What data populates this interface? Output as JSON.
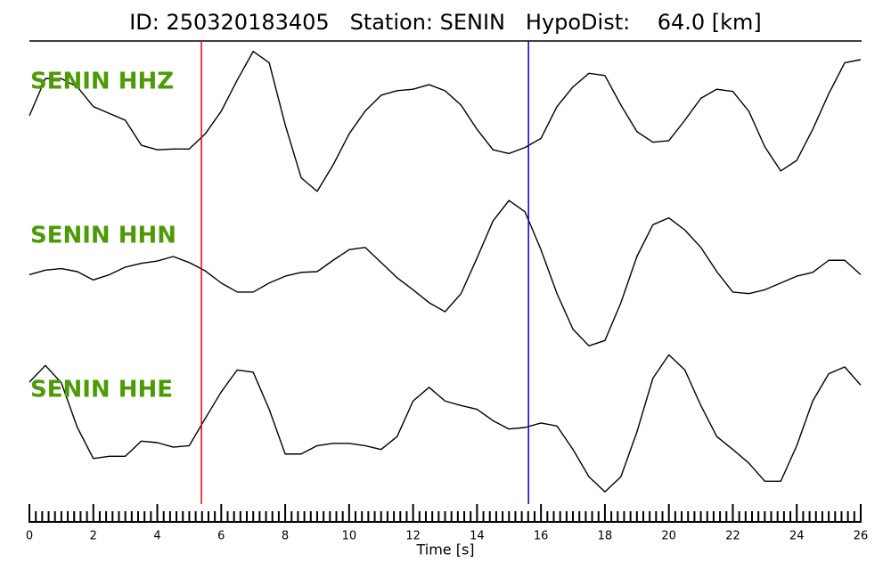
{
  "chart_data": {
    "type": "line",
    "title": "ID: 250320183405   Station: SENIN   HypoDist:    64.0 [km]",
    "xlabel": "Time [s]",
    "xlim": [
      0,
      26
    ],
    "xticks": [
      0,
      2,
      4,
      6,
      8,
      10,
      12,
      14,
      16,
      18,
      20,
      22,
      24,
      26
    ],
    "xminorticks": [
      0.2,
      0.4,
      0.6,
      0.8,
      1,
      1.2,
      1.4,
      1.6,
      1.8,
      2.2,
      2.4,
      2.6,
      2.8,
      3,
      3.2,
      3.4,
      3.6,
      3.8,
      4.2,
      4.4,
      4.6,
      4.8,
      5,
      5.2,
      5.4,
      5.6,
      5.8,
      6.2,
      6.4,
      6.6,
      6.8,
      7,
      7.2,
      7.4,
      7.6,
      7.8,
      8.2,
      8.4,
      8.6,
      8.8,
      9,
      9.2,
      9.4,
      9.6,
      9.8,
      10.2,
      10.4,
      10.6,
      10.8,
      11,
      11.2,
      11.4,
      11.6,
      11.8,
      12.2,
      12.4,
      12.6,
      12.8,
      13,
      13.2,
      13.4,
      13.6,
      13.8,
      14.2,
      14.4,
      14.6,
      14.8,
      15,
      15.2,
      15.4,
      15.6,
      15.8,
      16.2,
      16.4,
      16.6,
      16.8,
      17,
      17.2,
      17.4,
      17.6,
      17.8,
      18.2,
      18.4,
      18.6,
      18.8,
      19,
      19.2,
      19.4,
      19.6,
      19.8,
      20.2,
      20.4,
      20.6,
      20.8,
      21,
      21.2,
      21.4,
      21.6,
      21.8,
      22.2,
      22.4,
      22.6,
      22.8,
      23,
      23.2,
      23.4,
      23.6,
      23.8,
      24.2,
      24.4,
      24.6,
      24.8,
      25,
      25.2,
      25.4,
      25.6,
      25.8
    ],
    "ylim": [
      -100,
      100
    ],
    "label_color": "#4e9a06",
    "x": [
      0,
      0.5,
      1,
      1.5,
      2,
      2.5,
      3,
      3.5,
      4,
      4.5,
      5,
      5.5,
      6,
      6.5,
      7,
      7.5,
      8,
      8.5,
      9,
      9.5,
      10,
      10.5,
      11,
      11.5,
      12,
      12.5,
      13,
      13.5,
      14,
      14.5,
      15,
      15.5,
      16,
      16.5,
      17,
      17.5,
      18,
      18.5,
      19,
      19.5,
      20,
      20.5,
      21,
      21.5,
      22,
      22.5,
      23,
      23.5,
      24,
      24.5,
      25,
      25.5,
      26
    ],
    "series": [
      {
        "name": "SENIN HHZ",
        "color": "#000000",
        "values": [
          6,
          55,
          55,
          44,
          18,
          9,
          0,
          -33,
          -39,
          -38,
          -38,
          -18,
          12,
          53,
          91,
          76,
          -6,
          -76,
          -94,
          -59,
          -18,
          12,
          33,
          39,
          41,
          47,
          39,
          20,
          -12,
          -39,
          -44,
          -36,
          -24,
          18,
          44,
          62,
          59,
          20,
          -15,
          -29,
          -27,
          0,
          29,
          41,
          38,
          12,
          -35,
          -67,
          -53,
          -12,
          35,
          76,
          80
        ]
      },
      {
        "name": "SENIN HHN",
        "color": "#000000",
        "values": [
          -4,
          2,
          4,
          0,
          -11,
          -4,
          6,
          11,
          14,
          20,
          12,
          1,
          -15,
          -27,
          -27,
          -15,
          -6,
          -1,
          0,
          15,
          29,
          32,
          12,
          -8,
          -24,
          -41,
          -53,
          -29,
          18,
          67,
          94,
          79,
          29,
          -29,
          -76,
          -98,
          -91,
          -41,
          20,
          62,
          71,
          55,
          32,
          0,
          -27,
          -29,
          -24,
          -15,
          -6,
          -1,
          15,
          15,
          -4
        ]
      },
      {
        "name": "SENIN HHE",
        "color": "#000000",
        "values": [
          60,
          82,
          59,
          0,
          -41,
          -38,
          -38,
          -18,
          -20,
          -26,
          -24,
          12,
          47,
          76,
          73,
          24,
          -35,
          -35,
          -24,
          -21,
          -21,
          -24,
          -29,
          -12,
          35,
          53,
          35,
          29,
          24,
          9,
          -2,
          0,
          6,
          2,
          -29,
          -65,
          -85,
          -65,
          -6,
          65,
          96,
          76,
          29,
          -12,
          -29,
          -47,
          -71,
          -71,
          -24,
          35,
          71,
          80,
          56
        ]
      }
    ],
    "markers": [
      {
        "x": 5.38,
        "color": "#e8000b"
      },
      {
        "x": 15.61,
        "color": "#0000cc"
      }
    ]
  }
}
